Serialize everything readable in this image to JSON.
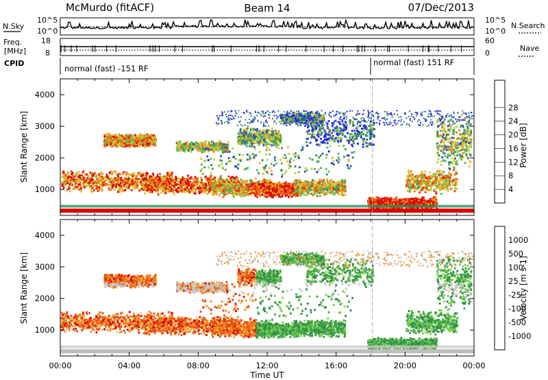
{
  "header": {
    "station": "McMurdo (fitACF)",
    "beam": "Beam 14",
    "date": "07/Dec/2013"
  },
  "noise_panel": {
    "left_label": "N.Sky",
    "right_label": "N.Search",
    "left_ticks": [
      "10^5",
      "10^0"
    ],
    "right_ticks": [
      "10^5",
      "10^0"
    ]
  },
  "freq_panel": {
    "left_label_line1": "Freq.",
    "left_label_line2": "[MHz]",
    "left_ticks": [
      "18",
      "8"
    ],
    "right_label": "Nave",
    "right_ticks": [
      "60",
      "0"
    ]
  },
  "cpid": {
    "label": "CPID",
    "program_1": "normal (fast) -151 RF",
    "program_2": "normal (fast) 151 RF",
    "switch_time_hours": 18.1
  },
  "chart_data": [
    {
      "type": "heatmap",
      "name": "power",
      "ylabel": "Slant Range [km]",
      "xlabel": "Time UT",
      "ylim": [
        180,
        4500
      ],
      "xlim_hours": [
        0,
        24
      ],
      "yticks": [
        "1000",
        "2000",
        "3000",
        "4000"
      ],
      "colorbar_label": "Power [dB]",
      "colorbar_ticks": [
        "4",
        "8",
        "12",
        "16",
        "20",
        "24",
        "28"
      ],
      "colorbar_colors": [
        "#1a1aff",
        "#3c4fa3",
        "#2e8f5e",
        "#5fb35a",
        "#b5d145",
        "#f5b223",
        "#f07a14",
        "#e5350f",
        "#d90000"
      ]
    },
    {
      "type": "heatmap",
      "name": "velocity",
      "ylabel": "Slant Range [km]",
      "xlabel": "Time UT",
      "ylim": [
        180,
        4500
      ],
      "xlim_hours": [
        0,
        24
      ],
      "yticks": [
        "1000",
        "2000",
        "3000",
        "4000"
      ],
      "colorbar_label": "Velocity [m s-1]",
      "colorbar_ticks": [
        "1000",
        "500",
        "100",
        "25",
        "-25",
        "-100",
        "-500",
        "-1000"
      ],
      "colorbar_colors": [
        "#1f2fa8",
        "#2e8a3f",
        "#3ea050",
        "#77d04a",
        "#c9c9c9",
        "#f5c96b",
        "#f08a1e",
        "#e84a10",
        "#d90000"
      ]
    }
  ],
  "x_ticks": [
    "00:00",
    "04:00",
    "08:00",
    "12:00",
    "16:00",
    "20:00",
    "00:00"
  ],
  "x_axis_label": "Time UT",
  "colors": {
    "ground_scatter": "#bebebe",
    "noise_trace": "#000000"
  }
}
